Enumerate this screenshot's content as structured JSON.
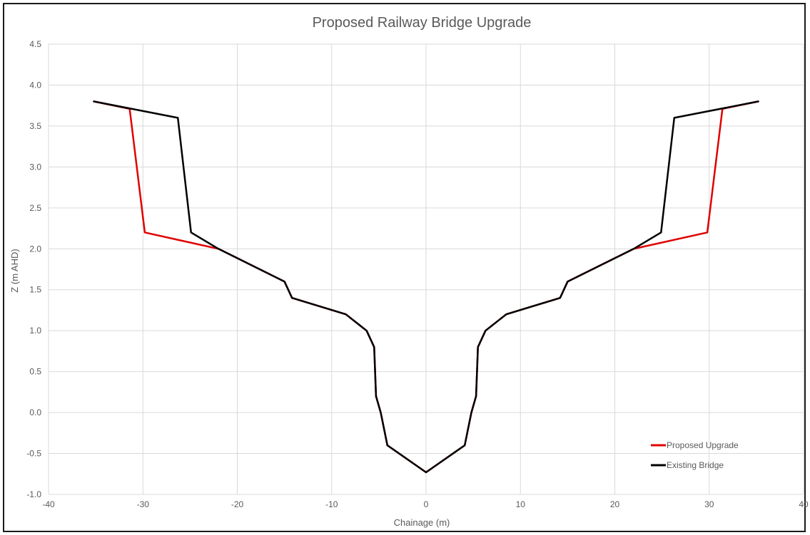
{
  "chart_data": {
    "type": "line",
    "title": "Proposed Railway Bridge Upgrade",
    "xlabel": "Chainage (m)",
    "ylabel": "Z (m AHD)",
    "xlim": [
      -40,
      40
    ],
    "ylim": [
      -1.0,
      4.5
    ],
    "xticks": [
      -40,
      -30,
      -20,
      -10,
      0,
      10,
      20,
      30,
      40
    ],
    "xtick_labels": [
      "-40",
      "-30",
      "-20",
      "-10",
      "0",
      "10",
      "20",
      "30",
      "40"
    ],
    "yticks": [
      -1.0,
      -0.5,
      0.0,
      0.5,
      1.0,
      1.5,
      2.0,
      2.5,
      3.0,
      3.5,
      4.0,
      4.5
    ],
    "ytick_labels": [
      "-1.0",
      "-0.5",
      "0.0",
      "0.5",
      "1.0",
      "1.5",
      "2.0",
      "2.5",
      "3.0",
      "3.5",
      "4.0",
      "4.5"
    ],
    "grid": true,
    "legend": "bottom-right",
    "series": [
      {
        "name": "Proposed Upgrade",
        "color": "#e00000",
        "points": [
          [
            -35.2,
            3.8
          ],
          [
            -31.4,
            3.71
          ],
          [
            -29.8,
            2.2
          ],
          [
            -22.0,
            2.0
          ],
          [
            -15.0,
            1.6
          ],
          [
            -14.2,
            1.4
          ],
          [
            -8.5,
            1.2
          ],
          [
            -6.3,
            1.0
          ],
          [
            -5.5,
            0.8
          ],
          [
            -5.3,
            0.2
          ],
          [
            -4.8,
            0.0
          ],
          [
            -4.1,
            -0.4
          ],
          [
            0.0,
            -0.73
          ],
          [
            4.1,
            -0.4
          ],
          [
            4.8,
            0.0
          ],
          [
            5.3,
            0.2
          ],
          [
            5.5,
            0.8
          ],
          [
            6.3,
            1.0
          ],
          [
            8.5,
            1.2
          ],
          [
            14.2,
            1.4
          ],
          [
            15.0,
            1.6
          ],
          [
            22.0,
            2.0
          ],
          [
            29.8,
            2.2
          ],
          [
            31.4,
            3.71
          ],
          [
            35.2,
            3.8
          ]
        ]
      },
      {
        "name": "Existing Bridge",
        "color": "#000000",
        "points": [
          [
            -35.2,
            3.8
          ],
          [
            -26.3,
            3.6
          ],
          [
            -24.9,
            2.2
          ],
          [
            -22.0,
            2.0
          ],
          [
            -15.0,
            1.6
          ],
          [
            -14.2,
            1.4
          ],
          [
            -8.5,
            1.2
          ],
          [
            -6.3,
            1.0
          ],
          [
            -5.5,
            0.8
          ],
          [
            -5.3,
            0.2
          ],
          [
            -4.8,
            0.0
          ],
          [
            -4.1,
            -0.4
          ],
          [
            0.0,
            -0.73
          ],
          [
            4.1,
            -0.4
          ],
          [
            4.8,
            0.0
          ],
          [
            5.3,
            0.2
          ],
          [
            5.5,
            0.8
          ],
          [
            6.3,
            1.0
          ],
          [
            8.5,
            1.2
          ],
          [
            14.2,
            1.4
          ],
          [
            15.0,
            1.6
          ],
          [
            22.0,
            2.0
          ],
          [
            24.9,
            2.2
          ],
          [
            26.3,
            3.6
          ],
          [
            35.2,
            3.8
          ]
        ]
      }
    ]
  }
}
